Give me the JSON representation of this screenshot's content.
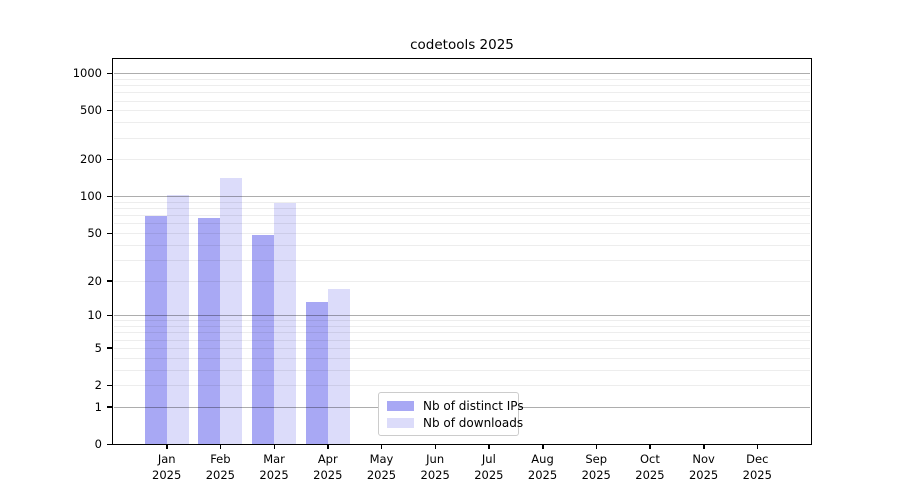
{
  "title": "codetools 2025",
  "chart_data": {
    "type": "bar",
    "title": "codetools 2025",
    "categories": [
      "Jan 2025",
      "Feb 2025",
      "Mar 2025",
      "Apr 2025",
      "May 2025",
      "Jun 2025",
      "Jul 2025",
      "Aug 2025",
      "Sep 2025",
      "Oct 2025",
      "Nov 2025",
      "Dec 2025"
    ],
    "x_tick_months": [
      "Jan",
      "Feb",
      "Mar",
      "Apr",
      "May",
      "Jun",
      "Jul",
      "Aug",
      "Sep",
      "Oct",
      "Nov",
      "Dec"
    ],
    "x_tick_year": "2025",
    "series": [
      {
        "name": "Nb of distinct IPs",
        "color": "#a8a8f4",
        "values": [
          69,
          67,
          48,
          13,
          0,
          0,
          0,
          0,
          0,
          0,
          0,
          0
        ]
      },
      {
        "name": "Nb of downloads",
        "color": "#dcdcfa",
        "values": [
          102,
          140,
          89,
          17,
          0,
          0,
          0,
          0,
          0,
          0,
          0,
          0
        ]
      }
    ],
    "xlabel": "",
    "ylabel": "",
    "y_ticks": [
      0,
      1,
      2,
      5,
      10,
      20,
      50,
      100,
      200,
      500,
      1000
    ],
    "y_scale": "log10(1+value)",
    "y_top_log": 3.116,
    "ylim": [
      0,
      1300
    ],
    "grid": "horizontal",
    "legend_position": "bottom-center"
  },
  "colors": {
    "major_gridline": "#a6a6a6",
    "minor_gridline": "#ededed",
    "axis": "#000000",
    "background": "#ffffff"
  }
}
